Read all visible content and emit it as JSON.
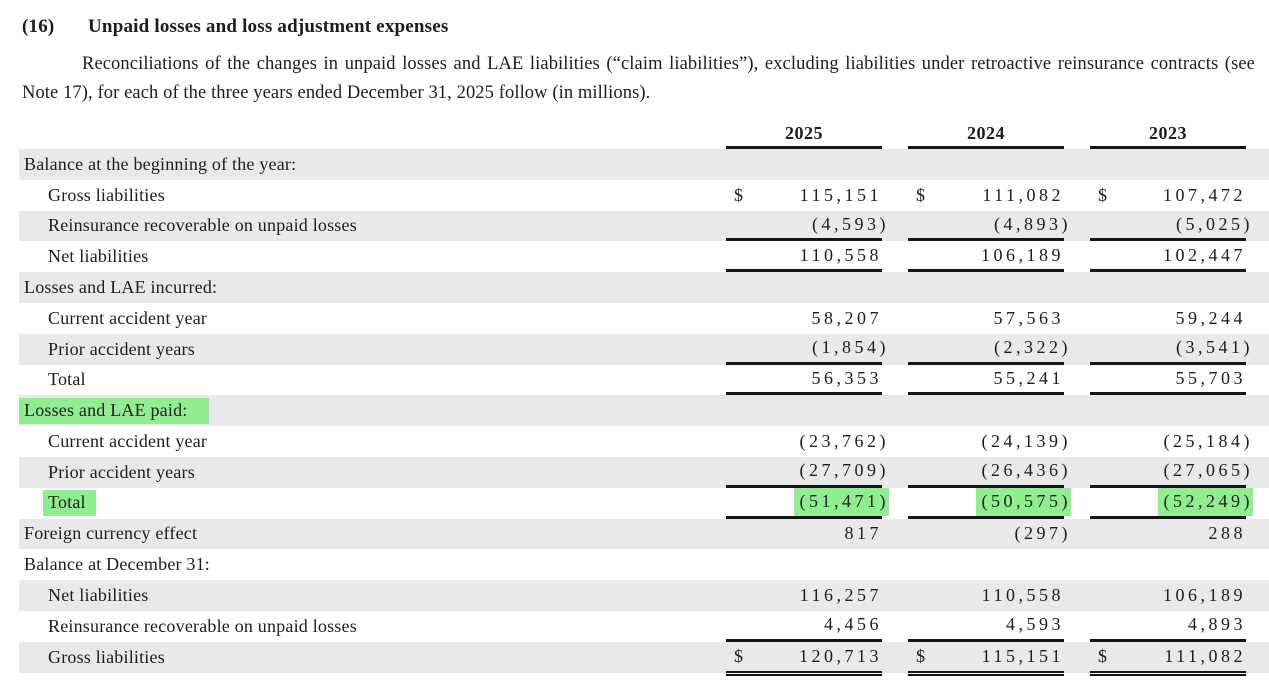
{
  "note": {
    "number": "(16)",
    "title": "Unpaid losses and loss adjustment expenses",
    "intro": "Reconciliations of the changes in unpaid losses and LAE liabilities (“claim liabilities”), excluding liabilities under retroactive reinsurance contracts (see Note 17), for each of the three years ended December 31, 2025 follow (in millions)."
  },
  "table": {
    "currency_symbol": "$",
    "shade_color": "#e9e9e9",
    "highlight_color": "#90ee90",
    "columns": [
      "2025",
      "2024",
      "2023"
    ],
    "rows": [
      {
        "label": "Balance at the beginning of the year:",
        "indent": 0,
        "shaded": true
      },
      {
        "label": "Gross liabilities",
        "indent": 1,
        "shaded": false,
        "dollar": true,
        "values": [
          "115,151",
          "111,082",
          "107,472"
        ]
      },
      {
        "label": "Reinsurance recoverable on unpaid losses",
        "indent": 1,
        "shaded": true,
        "values": [
          "(4,593)",
          "(4,893)",
          "(5,025)"
        ],
        "rule": "single"
      },
      {
        "label": "Net liabilities",
        "indent": 1,
        "shaded": false,
        "values": [
          "110,558",
          "106,189",
          "102,447"
        ],
        "rule": "single"
      },
      {
        "label": "Losses and LAE incurred:",
        "indent": 0,
        "shaded": true
      },
      {
        "label": "Current accident year",
        "indent": 1,
        "shaded": false,
        "values": [
          "58,207",
          "57,563",
          "59,244"
        ]
      },
      {
        "label": "Prior accident years",
        "indent": 1,
        "shaded": true,
        "values": [
          "(1,854)",
          "(2,322)",
          "(3,541)"
        ],
        "rule": "single"
      },
      {
        "label": "Total",
        "indent": 1,
        "shaded": false,
        "values": [
          "56,353",
          "55,241",
          "55,703"
        ],
        "rule": "single"
      },
      {
        "label": "Losses and LAE paid:",
        "indent": 0,
        "shaded": true,
        "label_highlighted": true
      },
      {
        "label": "Current accident year",
        "indent": 1,
        "shaded": false,
        "values": [
          "(23,762)",
          "(24,139)",
          "(25,184)"
        ]
      },
      {
        "label": "Prior accident years",
        "indent": 1,
        "shaded": true,
        "values": [
          "(27,709)",
          "(26,436)",
          "(27,065)"
        ],
        "rule": "single"
      },
      {
        "label": "Total",
        "indent": 1,
        "shaded": false,
        "label_highlighted": true,
        "values_highlighted": true,
        "values": [
          "(51,471)",
          "(50,575)",
          "(52,249)"
        ],
        "rule": "single"
      },
      {
        "label": "Foreign currency effect",
        "indent": 0,
        "shaded": true,
        "values": [
          "817",
          "(297)",
          "288"
        ]
      },
      {
        "label": "Balance at December 31:",
        "indent": 0,
        "shaded": false
      },
      {
        "label": "Net liabilities",
        "indent": 1,
        "shaded": true,
        "values": [
          "116,257",
          "110,558",
          "106,189"
        ]
      },
      {
        "label": "Reinsurance recoverable on unpaid losses",
        "indent": 1,
        "shaded": false,
        "values": [
          "4,456",
          "4,593",
          "4,893"
        ],
        "rule": "single"
      },
      {
        "label": "Gross liabilities",
        "indent": 1,
        "shaded": true,
        "dollar": true,
        "values": [
          "120,713",
          "115,151",
          "111,082"
        ],
        "rule": "double"
      }
    ]
  }
}
